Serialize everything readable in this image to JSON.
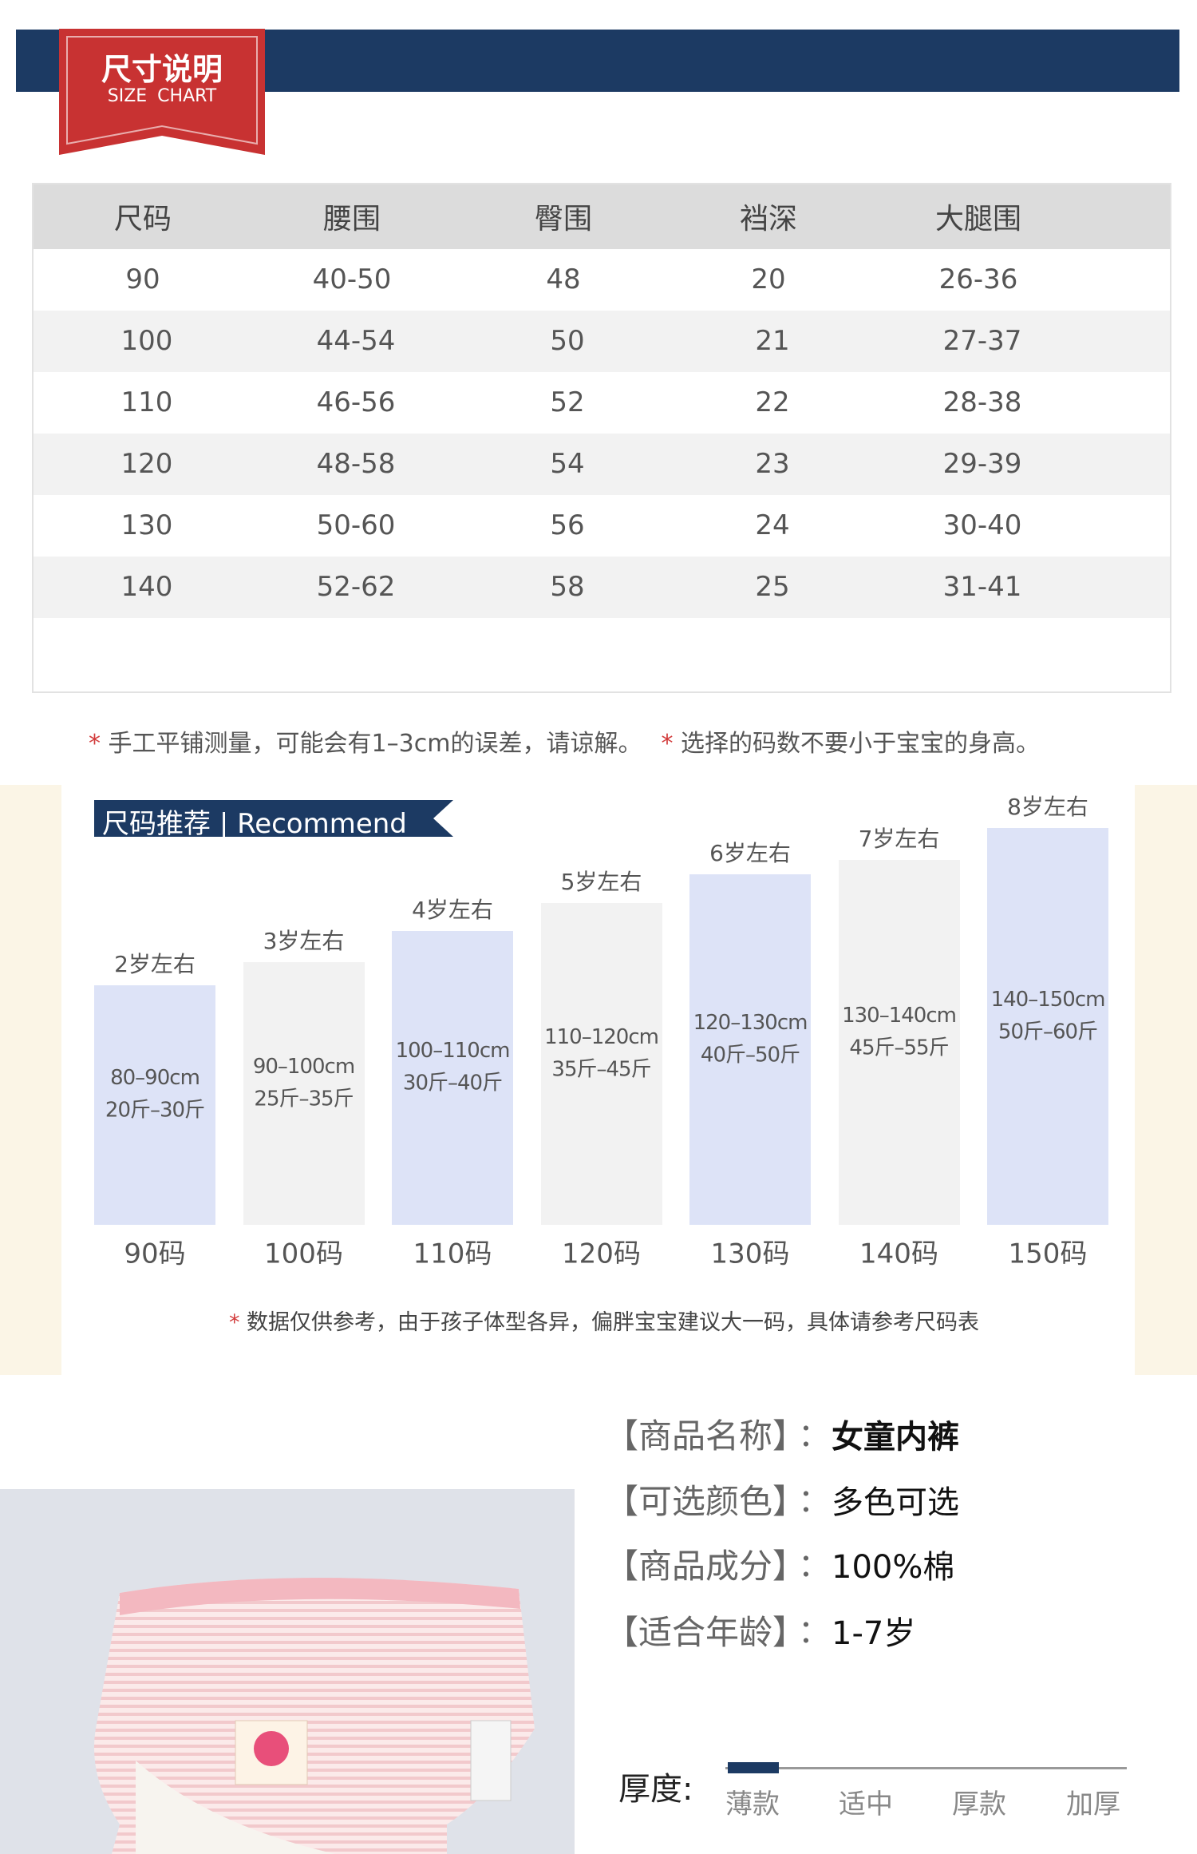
{
  "header": {
    "title": "尺寸说明",
    "subtitle": "SIZE CHART"
  },
  "table": {
    "headers": [
      "尺码",
      "腰围",
      "臀围",
      "裆深",
      "大腿围"
    ],
    "rows": [
      [
        "90",
        "40-50",
        "48",
        "20",
        "26-36"
      ],
      [
        "100",
        "44-54",
        "50",
        "21",
        "27-37"
      ],
      [
        "110",
        "46-56",
        "52",
        "22",
        "28-38"
      ],
      [
        "120",
        "48-58",
        "54",
        "23",
        "29-39"
      ],
      [
        "130",
        "50-60",
        "56",
        "24",
        "30-40"
      ],
      [
        "140",
        "52-62",
        "58",
        "25",
        "31-41"
      ]
    ]
  },
  "note_marker": "*",
  "notes": [
    "手工平铺测量，可能会有1–3cm的误差，请谅解。",
    "选择的码数不要小于宝宝的身高。"
  ],
  "recommend": {
    "title": "尺码推荐",
    "divider": "|",
    "subtitle": "Recommend",
    "items": [
      {
        "age": "2岁左右",
        "height": "80–90cm",
        "weight": "20斤–30斤",
        "size": "90码"
      },
      {
        "age": "3岁左右",
        "height": "90–100cm",
        "weight": "25斤–35斤",
        "size": "100码"
      },
      {
        "age": "4岁左右",
        "height": "100–110cm",
        "weight": "30斤–40斤",
        "size": "110码"
      },
      {
        "age": "5岁左右",
        "height": "110–120cm",
        "weight": "35斤–45斤",
        "size": "120码"
      },
      {
        "age": "6岁左右",
        "height": "120–130cm",
        "weight": "40斤–50斤",
        "size": "130码"
      },
      {
        "age": "7岁左右",
        "height": "130–140cm",
        "weight": "45斤–55斤",
        "size": "140码"
      },
      {
        "age": "8岁左右",
        "height": "140–150cm",
        "weight": "50斤–60斤",
        "size": "150码"
      }
    ],
    "note": "数据仅供参考，由于孩子体型各异，偏胖宝宝建议大一码，具体请参考尺码表"
  },
  "product": {
    "separator": "：",
    "rows": [
      {
        "label": "【商品名称】",
        "value": "女童内裤"
      },
      {
        "label": "【可选颜色】",
        "value": "多色可选"
      },
      {
        "label": "【商品成分】",
        "value": "100%棉"
      },
      {
        "label": "【适合年龄】",
        "value": "1-7岁"
      }
    ]
  },
  "thickness": {
    "label": "厚度:",
    "options": [
      "薄款",
      "适中",
      "厚款",
      "加厚"
    ],
    "selected": 0
  }
}
